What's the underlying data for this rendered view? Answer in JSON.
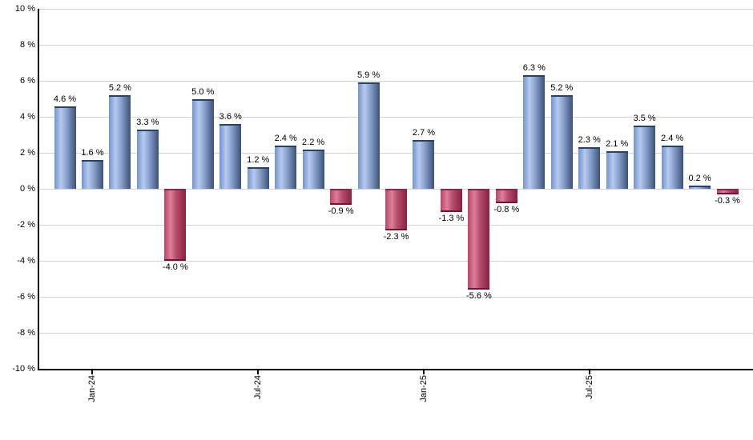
{
  "chart_data": {
    "type": "bar",
    "title": "",
    "xlabel": "",
    "ylabel": "",
    "ylim": [
      -10,
      10
    ],
    "y_tick_step": 2,
    "y_tick_labels": [
      "10 %",
      "8 %",
      "6 %",
      "4 %",
      "2 %",
      "0 %",
      "-2 %",
      "-4 %",
      "-6 %",
      "-8 %",
      "-10 %"
    ],
    "grid": true,
    "legend": false,
    "x_ticks": [
      {
        "index": 1,
        "label": "Jan-24"
      },
      {
        "index": 7,
        "label": "Jul-24"
      },
      {
        "index": 13,
        "label": "Jan-25"
      },
      {
        "index": 19,
        "label": "Jul-25"
      }
    ],
    "points": [
      {
        "value": 4.6,
        "label": "4.6 %"
      },
      {
        "value": 1.6,
        "label": "1.6 %"
      },
      {
        "value": 5.2,
        "label": "5.2 %"
      },
      {
        "value": 3.3,
        "label": "3.3 %"
      },
      {
        "value": -4.0,
        "label": "-4.0 %"
      },
      {
        "value": 5.0,
        "label": "5.0 %"
      },
      {
        "value": 3.6,
        "label": "3.6 %"
      },
      {
        "value": 1.2,
        "label": "1.2 %"
      },
      {
        "value": 2.4,
        "label": "2.4 %"
      },
      {
        "value": 2.2,
        "label": "2.2 %"
      },
      {
        "value": -0.9,
        "label": "-0.9 %"
      },
      {
        "value": 5.9,
        "label": "5.9 %"
      },
      {
        "value": -2.3,
        "label": "-2.3 %"
      },
      {
        "value": 2.7,
        "label": "2.7 %"
      },
      {
        "value": -1.3,
        "label": "-1.3 %"
      },
      {
        "value": -5.6,
        "label": "-5.6 %"
      },
      {
        "value": -0.8,
        "label": "-0.8 %"
      },
      {
        "value": 6.3,
        "label": "6.3 %"
      },
      {
        "value": 5.2,
        "label": "5.2 %"
      },
      {
        "value": 2.3,
        "label": "2.3 %"
      },
      {
        "value": 2.1,
        "label": "2.1 %"
      },
      {
        "value": 3.5,
        "label": "3.5 %"
      },
      {
        "value": 2.4,
        "label": "2.4 %"
      },
      {
        "value": 0.2,
        "label": "0.2 %"
      },
      {
        "value": -0.3,
        "label": "-0.3 %"
      }
    ],
    "colors": {
      "positive_edge": "#7195d1",
      "positive_light": "#b7c9ec",
      "positive_dark": "#3c5177",
      "positive_cap": "#24426e",
      "negative_edge": "#bd4466",
      "negative_light": "#dd7f99",
      "negative_dark": "#8b2040",
      "negative_cap": "#731333",
      "gridline": "#d3d3d3",
      "axis": "#000000"
    }
  }
}
